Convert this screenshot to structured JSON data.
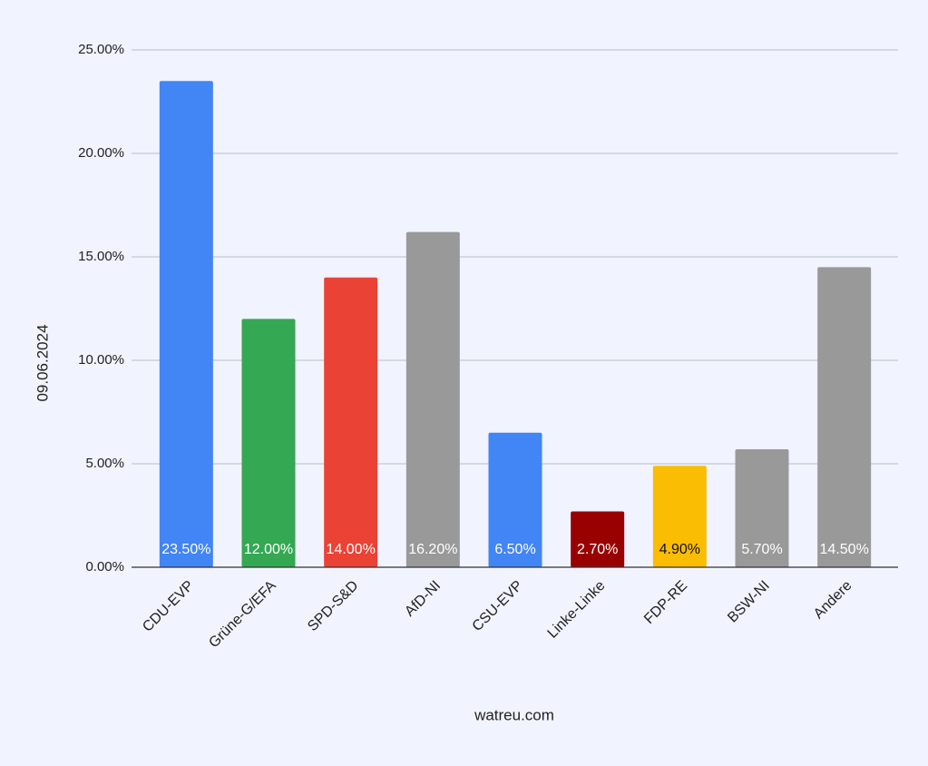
{
  "chart_data": {
    "type": "bar",
    "x_label": "watreu.com",
    "y_label": "09.06.2024",
    "categories": [
      "CDU-EVP",
      "Grüne-G/EFA",
      "SPD-S&D",
      "AfD-NI",
      "CSU-EVP",
      "Linke-Linke",
      "FDP-RE",
      "BSW-NI",
      "Andere"
    ],
    "values": [
      23.5,
      12.0,
      14.0,
      16.2,
      6.5,
      2.7,
      4.9,
      5.7,
      14.5
    ],
    "value_labels": [
      "23.50%",
      "12.00%",
      "14.00%",
      "16.20%",
      "6.50%",
      "2.70%",
      "4.90%",
      "5.70%",
      "14.50%"
    ],
    "colors": [
      "#4285f4",
      "#34a853",
      "#ea4335",
      "#999999",
      "#4285f4",
      "#990000",
      "#fbbc04",
      "#999999",
      "#999999"
    ],
    "ylim": [
      0,
      25
    ],
    "yticks": [
      {
        "value": 0,
        "label": "0.00%"
      },
      {
        "value": 5,
        "label": "5.00%"
      },
      {
        "value": 10,
        "label": "10.00%"
      },
      {
        "value": 15,
        "label": "15.00%"
      },
      {
        "value": 20,
        "label": "20.00%"
      },
      {
        "value": 25,
        "label": "25.00%"
      }
    ],
    "grid": true
  }
}
